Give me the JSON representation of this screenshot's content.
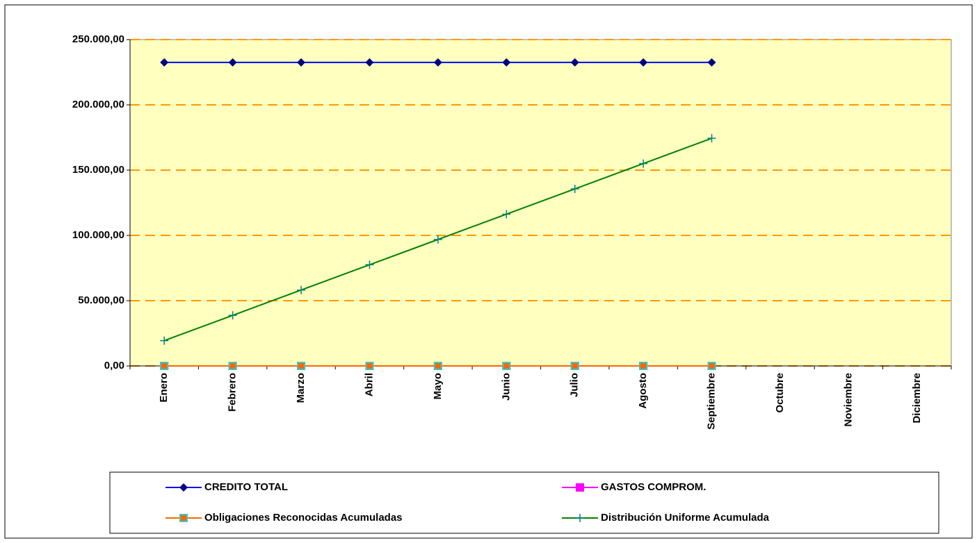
{
  "chart_data": {
    "type": "line",
    "categories": [
      "Enero",
      "Febrero",
      "Marzo",
      "Abril",
      "Mayo",
      "Junio",
      "Julio",
      "Agosto",
      "Septiembre",
      "Octubre",
      "Noviembre",
      "Diciembre"
    ],
    "series": [
      {
        "name": "CREDITO TOTAL",
        "color": "#0000ff",
        "marker": "diamond",
        "marker_color": "#000080",
        "values": [
          232500,
          232500,
          232500,
          232500,
          232500,
          232500,
          232500,
          232500,
          232500,
          null,
          null,
          null
        ]
      },
      {
        "name": "GASTOS COMPROM.",
        "color": "#ff00ff",
        "marker": "square",
        "marker_color": "#ff00ff",
        "values": [
          0,
          0,
          0,
          0,
          0,
          0,
          0,
          0,
          0,
          null,
          null,
          null
        ]
      },
      {
        "name": "Obligaciones Reconocidas Acumuladas",
        "color": "#ff6600",
        "marker": "square",
        "marker_color": "#ff6600",
        "marker_edge": "#33cccc",
        "values": [
          0,
          0,
          0,
          0,
          0,
          0,
          0,
          0,
          0,
          null,
          null,
          null
        ]
      },
      {
        "name": "Distribución Uniforme Acumulada",
        "color": "#008000",
        "marker": "plus",
        "marker_color": "#008080",
        "values": [
          19375,
          38750,
          58125,
          77500,
          96875,
          116250,
          135625,
          155000,
          174375,
          null,
          null,
          null
        ]
      }
    ],
    "ylim": [
      0,
      250000
    ],
    "yticks": [
      {
        "value": 0,
        "label": "0,00"
      },
      {
        "value": 50000,
        "label": "50.000,00"
      },
      {
        "value": 100000,
        "label": "100.000,00"
      },
      {
        "value": 150000,
        "label": "150.000,00"
      },
      {
        "value": 200000,
        "label": "200.000,00"
      },
      {
        "value": 250000,
        "label": "250.000,00"
      }
    ],
    "grid": true,
    "grid_color": "#ff9900",
    "plot_background": "#ffffc0",
    "legend": "bottom"
  }
}
